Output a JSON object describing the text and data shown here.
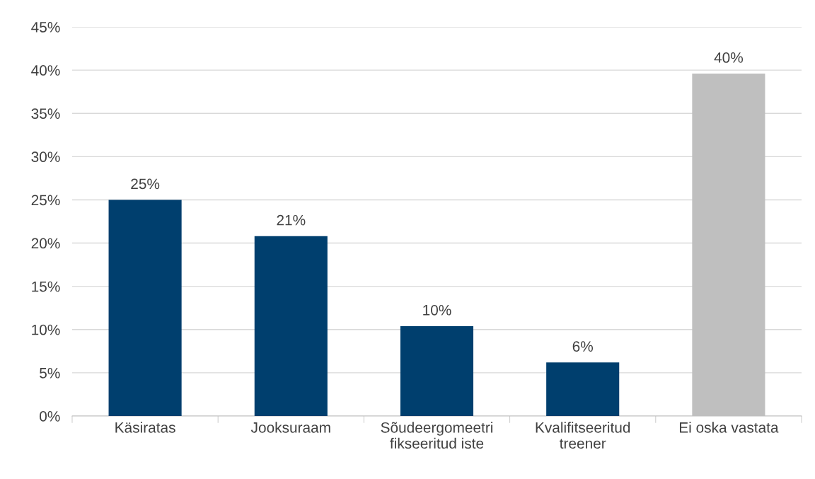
{
  "chart_data": {
    "type": "bar",
    "categories": [
      "Käsiratas",
      "Jooksuraam",
      "Sõudeergomeetri\nfikseeritud iste",
      "Kvalifitseeritud\ntreener",
      "Ei oska vastata"
    ],
    "values": [
      25.0,
      20.8,
      10.4,
      6.2,
      39.6
    ],
    "colors": [
      "#003f6e",
      "#003f6e",
      "#003f6e",
      "#003f6e",
      "#bfbfbf"
    ],
    "value_labels": [
      "25%",
      "21%",
      "10%",
      "6%",
      "40%"
    ],
    "ylim": [
      0,
      45
    ],
    "yticks": [
      {
        "value": 0,
        "label": "0%"
      },
      {
        "value": 5,
        "label": "5%"
      },
      {
        "value": 10,
        "label": "10%"
      },
      {
        "value": 15,
        "label": "15%"
      },
      {
        "value": 20,
        "label": "20%"
      },
      {
        "value": 25,
        "label": "25%"
      },
      {
        "value": 30,
        "label": "30%"
      },
      {
        "value": 35,
        "label": "35%"
      },
      {
        "value": 40,
        "label": "40%"
      },
      {
        "value": 45,
        "label": "45%"
      }
    ],
    "grid": "y",
    "legend": false
  }
}
